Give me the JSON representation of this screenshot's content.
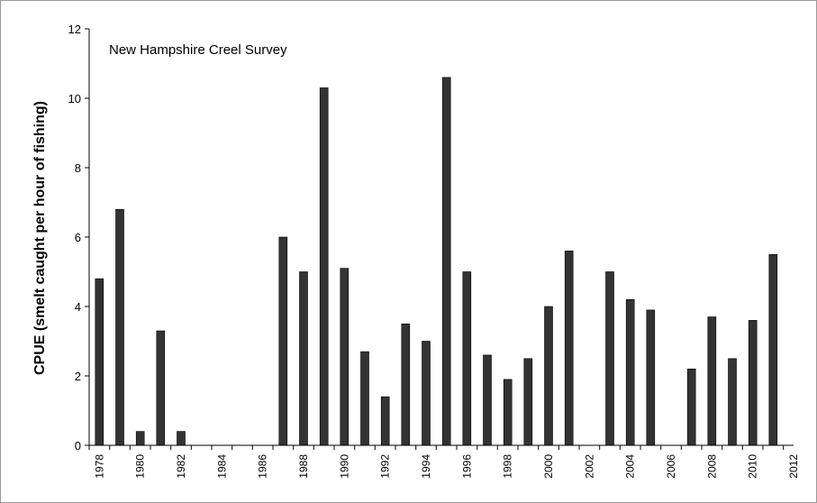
{
  "chart_data": {
    "type": "bar",
    "title": "",
    "annotation": "New Hampshire Creel Survey",
    "xlabel": "",
    "ylabel": "CPUE (smelt caught per hour of fishing)",
    "ylim": [
      0,
      12
    ],
    "yticks": [
      0,
      2,
      4,
      6,
      8,
      10,
      12
    ],
    "x_range": [
      1977.5,
      2012
    ],
    "xticks": [
      1978,
      1980,
      1982,
      1984,
      1986,
      1988,
      1990,
      1992,
      1994,
      1996,
      1998,
      2000,
      2002,
      2004,
      2006,
      2008,
      2010,
      2012
    ],
    "bar_color": "#333333",
    "grid": false,
    "legend": "none",
    "categories": [
      1978,
      1979,
      1980,
      1981,
      1982,
      1983,
      1984,
      1985,
      1986,
      1987,
      1988,
      1989,
      1990,
      1991,
      1992,
      1993,
      1994,
      1995,
      1996,
      1997,
      1998,
      1999,
      2000,
      2001,
      2002,
      2003,
      2004,
      2005,
      2006,
      2007,
      2008,
      2009,
      2010,
      2011
    ],
    "values": [
      4.8,
      6.8,
      0.4,
      3.3,
      0.4,
      0,
      0,
      0,
      0,
      6.0,
      5.0,
      10.3,
      5.1,
      2.7,
      1.4,
      3.5,
      3.0,
      10.6,
      5.0,
      2.6,
      1.9,
      2.5,
      4.0,
      5.6,
      0,
      5.0,
      4.2,
      3.9,
      0,
      2.2,
      3.7,
      2.5,
      3.6,
      5.5
    ]
  }
}
